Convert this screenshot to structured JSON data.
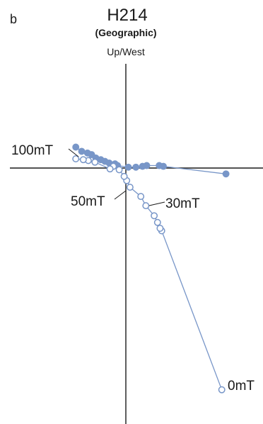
{
  "chart_data": {
    "type": "scatter",
    "panel_label": "b",
    "title": "H214",
    "subtitle": "(Geographic)",
    "axis_label_top": "Up/West",
    "grid": false,
    "series_color": "#7896c8",
    "xlim": [
      -1.7,
      1.7
    ],
    "ylim": [
      -3.3,
      1.8
    ],
    "series": [
      {
        "kind": "filled",
        "points": [
          [
            1.2,
            -0.07
          ],
          [
            0.45,
            0.02
          ],
          [
            0.4,
            0.03
          ],
          [
            0.25,
            0.03
          ],
          [
            0.2,
            0.02
          ],
          [
            0.12,
            0.01
          ],
          [
            0.03,
            0.01
          ],
          [
            -0.1,
            0.03
          ],
          [
            -0.13,
            0.05
          ],
          [
            -0.2,
            0.06
          ],
          [
            -0.25,
            0.08
          ],
          [
            -0.3,
            0.1
          ],
          [
            -0.36,
            0.12
          ],
          [
            -0.41,
            0.16
          ],
          [
            -0.46,
            0.18
          ],
          [
            -0.53,
            0.2
          ],
          [
            -0.6,
            0.25
          ]
        ]
      },
      {
        "kind": "open",
        "points": [
          [
            1.15,
            -2.65
          ],
          [
            0.43,
            -0.75
          ],
          [
            0.41,
            -0.72
          ],
          [
            0.38,
            -0.65
          ],
          [
            0.34,
            -0.57
          ],
          [
            0.24,
            -0.45
          ],
          [
            0.18,
            -0.34
          ],
          [
            0.05,
            -0.23
          ],
          [
            0.01,
            -0.15
          ],
          [
            -0.02,
            -0.1
          ],
          [
            -0.08,
            -0.02
          ],
          [
            -0.15,
            0.02
          ],
          [
            -0.19,
            -0.01
          ],
          [
            -0.37,
            0.07
          ],
          [
            -0.45,
            0.09
          ],
          [
            -0.51,
            0.1
          ],
          [
            -0.6,
            0.11
          ]
        ]
      }
    ],
    "annotations": [
      {
        "text": "100mT",
        "x": -0.6,
        "y": 0.25
      },
      {
        "text": "50mT",
        "x": 0.01,
        "y": -0.15
      },
      {
        "text": "30mT",
        "x": 0.24,
        "y": -0.45
      },
      {
        "text": "0mT",
        "x": 1.15,
        "y": -2.65
      }
    ]
  }
}
